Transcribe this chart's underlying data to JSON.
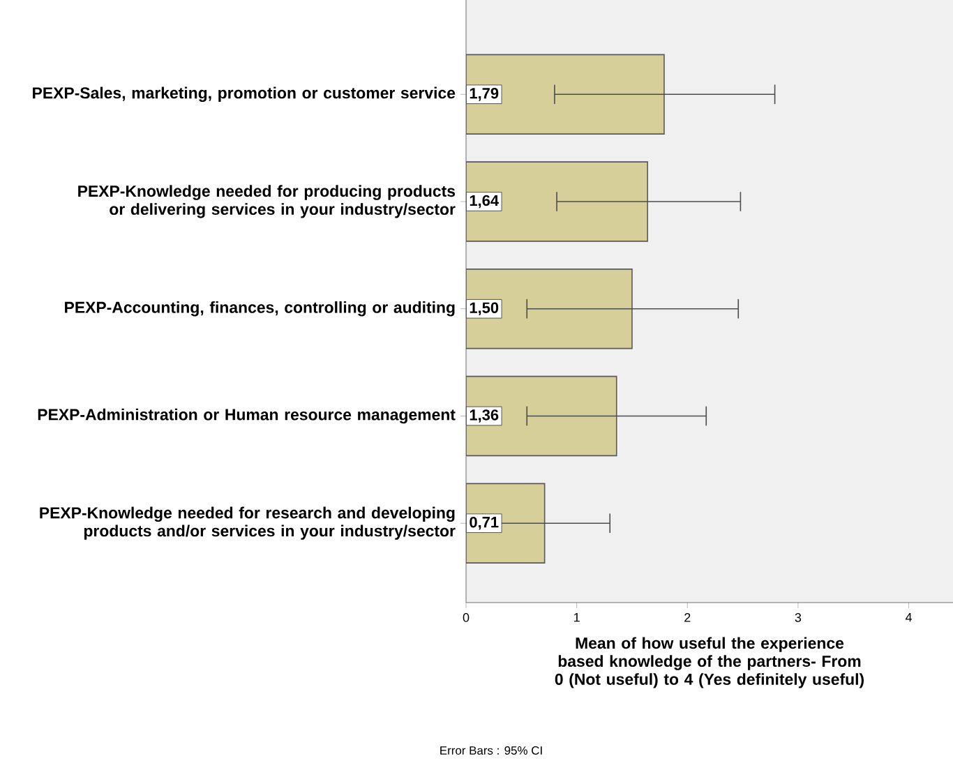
{
  "chart_data": {
    "type": "bar",
    "orientation": "horizontal",
    "categories": [
      "PEXP-Sales, marketing, promotion or customer service",
      "PEXP-Knowledge needed for producing products or delivering services in your industry/sector",
      "PEXP-Accounting,  finances, controlling or auditing",
      "PEXP-Administration or Human resource management",
      "PEXP-Knowledge needed for research and developing products and/or services in your industry/sector"
    ],
    "values": [
      1.79,
      1.64,
      1.5,
      1.36,
      0.71
    ],
    "value_labels": [
      "1,79",
      "1,64",
      "1,50",
      "1,36",
      "0,71"
    ],
    "errors": [
      [
        0.8,
        2.79
      ],
      [
        0.82,
        2.48
      ],
      [
        0.55,
        2.46
      ],
      [
        0.55,
        2.17
      ],
      [
        0.15,
        1.3
      ]
    ],
    "color": "#d6cf9a",
    "xlim": [
      0,
      4.4
    ],
    "xticks": [
      0,
      1,
      2,
      3,
      4
    ],
    "xlabel": "Mean of how useful the experience based knowledge of the partners- From 0 (Not useful) to 4 (Yes definitely useful)",
    "annotations": [
      "Error Bars : 95% CI"
    ]
  }
}
